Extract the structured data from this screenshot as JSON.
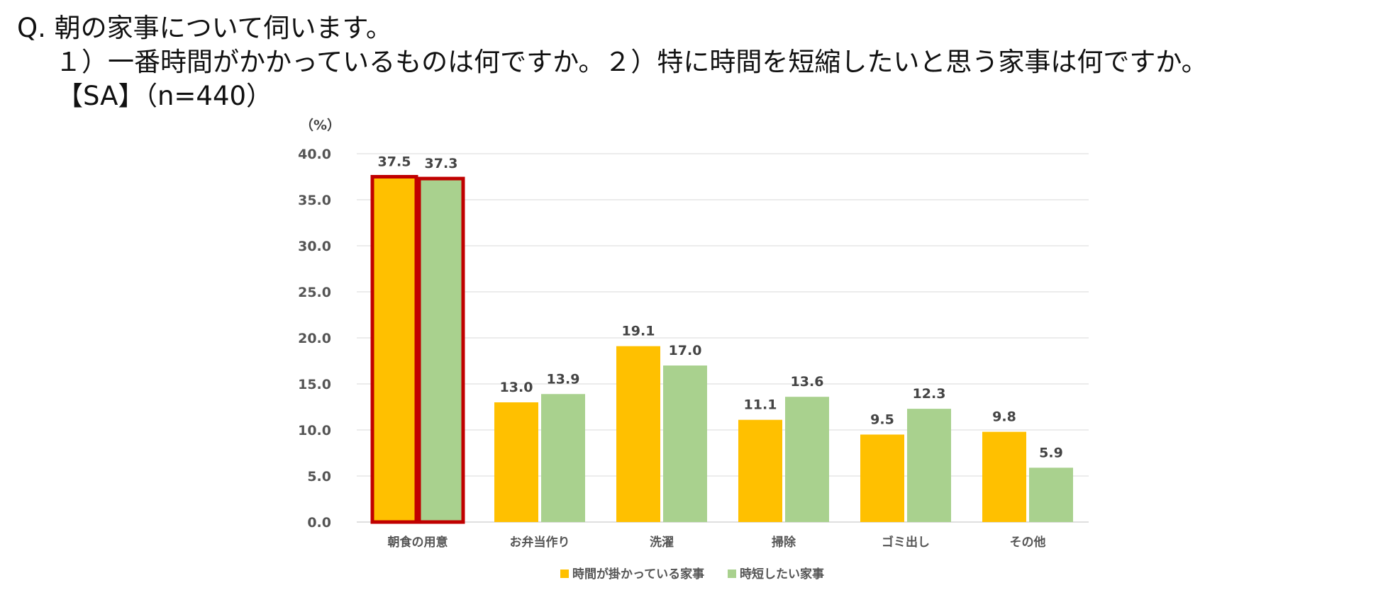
{
  "question": {
    "line1": "Q. 朝の家事について伺います。",
    "line2": "１）一番時間がかかっているものは何ですか。２）特に時間を短縮したいと思う家事は何ですか。",
    "line3": "【SA】（n=440）"
  },
  "chart_data": {
    "type": "bar",
    "unit_label": "（%）",
    "categories": [
      "朝食の用意",
      "お弁当作り",
      "洗濯",
      "掃除",
      "ゴミ出し",
      "その他"
    ],
    "series": [
      {
        "name": "時間が掛かっている家事",
        "color": "#FFC000",
        "values": [
          37.5,
          13.0,
          19.1,
          11.1,
          9.5,
          9.8
        ]
      },
      {
        "name": "時短したい家事",
        "color": "#A9D18E",
        "values": [
          37.3,
          13.9,
          17.0,
          13.6,
          12.3,
          5.9
        ]
      }
    ],
    "ylim": [
      0,
      40
    ],
    "yticks": [
      "0.0",
      "5.0",
      "10.0",
      "15.0",
      "20.0",
      "25.0",
      "30.0",
      "35.0",
      "40.0"
    ],
    "grid": true,
    "highlight_category": "朝食の用意",
    "highlight_color": "#C00000",
    "legend_position": "bottom"
  }
}
